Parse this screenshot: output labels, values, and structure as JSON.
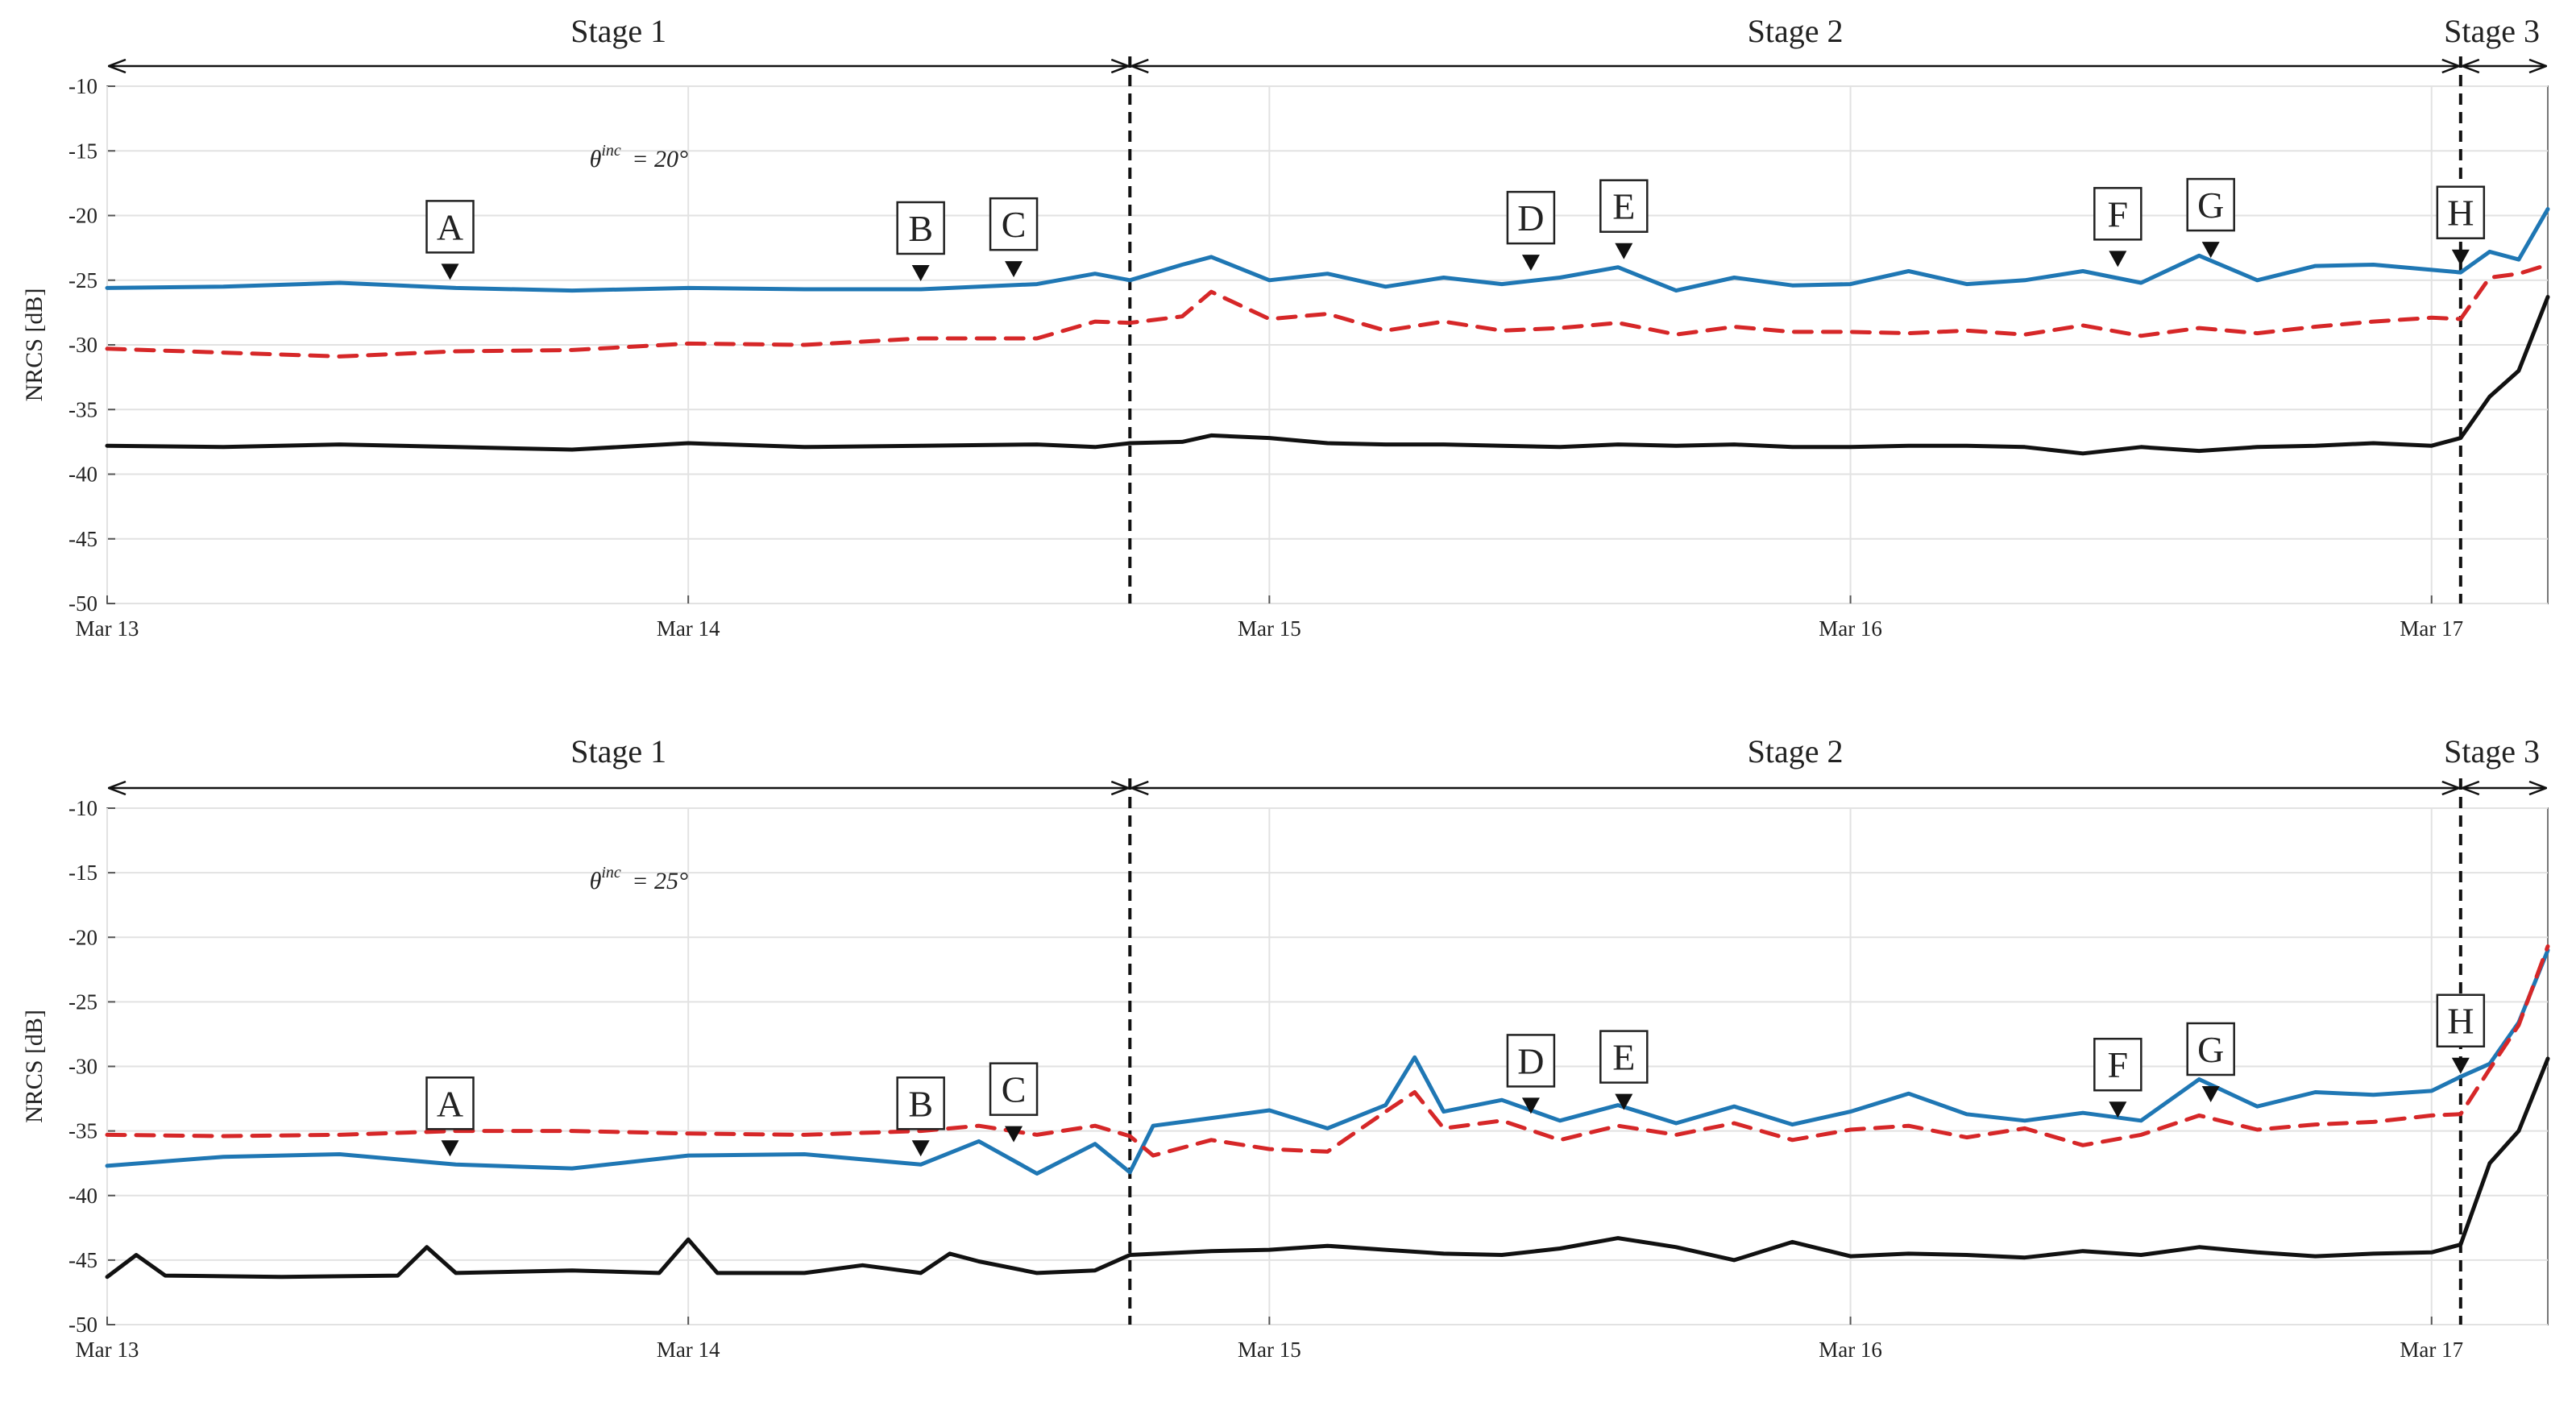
{
  "chart_data": [
    {
      "type": "line",
      "panel": "top",
      "ylabel": "NRCS [dB]",
      "ylim": [
        -50,
        -10
      ],
      "yticks": [
        -10,
        -15,
        -20,
        -25,
        -30,
        -35,
        -40,
        -45,
        -50
      ],
      "xlim": [
        0,
        4.2
      ],
      "xticks": [
        {
          "v": 0,
          "label": "Mar 13"
        },
        {
          "v": 1,
          "label": "Mar 14"
        },
        {
          "v": 2,
          "label": "Mar 15"
        },
        {
          "v": 3,
          "label": "Mar 16"
        },
        {
          "v": 4,
          "label": "Mar 17"
        }
      ],
      "grid": true,
      "annotation": {
        "theta_label": "θ",
        "theta_sup": "inc",
        "theta_value": "= 20°"
      },
      "stages": [
        {
          "label": "Stage 1",
          "from": 0,
          "to": 1.76
        },
        {
          "label": "Stage 2",
          "from": 1.76,
          "to": 4.05
        },
        {
          "label": "Stage 3",
          "from": 4.05,
          "to": 4.2
        }
      ],
      "stage_boundaries": [
        1.76,
        4.05
      ],
      "markers": [
        {
          "label": "A",
          "x": 0.59,
          "y": -25.6
        },
        {
          "label": "B",
          "x": 1.4,
          "y": -25.7
        },
        {
          "label": "C",
          "x": 1.56,
          "y": -25.4
        },
        {
          "label": "D",
          "x": 2.45,
          "y": -24.9
        },
        {
          "label": "E",
          "x": 2.61,
          "y": -24.0
        },
        {
          "label": "F",
          "x": 3.46,
          "y": -24.6
        },
        {
          "label": "G",
          "x": 3.62,
          "y": -23.9
        },
        {
          "label": "H",
          "x": 4.05,
          "y": -24.5
        }
      ],
      "series": [
        {
          "name": "blue",
          "color": "#1f77b4",
          "style": "solid",
          "x": [
            0,
            0.2,
            0.4,
            0.6,
            0.8,
            1.0,
            1.2,
            1.4,
            1.6,
            1.7,
            1.76,
            1.85,
            1.9,
            2.0,
            2.1,
            2.2,
            2.3,
            2.4,
            2.5,
            2.6,
            2.7,
            2.8,
            2.9,
            3.0,
            3.1,
            3.2,
            3.3,
            3.4,
            3.5,
            3.6,
            3.7,
            3.8,
            3.9,
            4.0,
            4.05,
            4.1,
            4.15,
            4.2
          ],
          "y": [
            -25.6,
            -25.5,
            -25.2,
            -25.6,
            -25.8,
            -25.6,
            -25.7,
            -25.7,
            -25.3,
            -24.5,
            -25.0,
            -23.8,
            -23.2,
            -25.0,
            -24.5,
            -25.5,
            -24.8,
            -25.3,
            -24.8,
            -24.0,
            -25.8,
            -24.8,
            -25.4,
            -25.3,
            -24.3,
            -25.3,
            -25.0,
            -24.3,
            -25.2,
            -23.1,
            -25.0,
            -23.9,
            -23.8,
            -24.2,
            -24.4,
            -22.8,
            -23.4,
            -19.5
          ]
        },
        {
          "name": "red",
          "color": "#d62728",
          "style": "dashed",
          "x": [
            0,
            0.2,
            0.4,
            0.6,
            0.8,
            1.0,
            1.2,
            1.4,
            1.6,
            1.7,
            1.76,
            1.85,
            1.9,
            2.0,
            2.1,
            2.2,
            2.3,
            2.4,
            2.5,
            2.6,
            2.7,
            2.8,
            2.9,
            3.0,
            3.1,
            3.2,
            3.3,
            3.4,
            3.5,
            3.6,
            3.7,
            3.8,
            3.9,
            4.0,
            4.05,
            4.1,
            4.15,
            4.2
          ],
          "y": [
            -30.3,
            -30.6,
            -30.9,
            -30.5,
            -30.4,
            -29.9,
            -30.0,
            -29.5,
            -29.5,
            -28.2,
            -28.3,
            -27.8,
            -25.9,
            -28.0,
            -27.6,
            -28.9,
            -28.2,
            -28.9,
            -28.7,
            -28.3,
            -29.2,
            -28.6,
            -29.0,
            -29.0,
            -29.1,
            -28.9,
            -29.2,
            -28.5,
            -29.3,
            -28.7,
            -29.1,
            -28.6,
            -28.2,
            -27.9,
            -28.0,
            -24.8,
            -24.5,
            -23.8
          ]
        },
        {
          "name": "black",
          "color": "#111111",
          "style": "solid",
          "x": [
            0,
            0.2,
            0.4,
            0.6,
            0.8,
            1.0,
            1.2,
            1.4,
            1.6,
            1.7,
            1.76,
            1.85,
            1.9,
            2.0,
            2.1,
            2.2,
            2.3,
            2.4,
            2.5,
            2.6,
            2.7,
            2.8,
            2.9,
            3.0,
            3.1,
            3.2,
            3.3,
            3.4,
            3.5,
            3.6,
            3.7,
            3.8,
            3.9,
            4.0,
            4.05,
            4.1,
            4.15,
            4.2
          ],
          "y": [
            -37.8,
            -37.9,
            -37.7,
            -37.9,
            -38.1,
            -37.6,
            -37.9,
            -37.8,
            -37.7,
            -37.9,
            -37.6,
            -37.5,
            -37.0,
            -37.2,
            -37.6,
            -37.7,
            -37.7,
            -37.8,
            -37.9,
            -37.7,
            -37.8,
            -37.7,
            -37.9,
            -37.9,
            -37.8,
            -37.8,
            -37.9,
            -38.4,
            -37.9,
            -38.2,
            -37.9,
            -37.8,
            -37.6,
            -37.8,
            -37.2,
            -34.0,
            -32.0,
            -26.3
          ]
        }
      ]
    },
    {
      "type": "line",
      "panel": "bottom",
      "ylabel": "NRCS [dB]",
      "ylim": [
        -50,
        -10
      ],
      "yticks": [
        -10,
        -15,
        -20,
        -25,
        -30,
        -35,
        -40,
        -45,
        -50
      ],
      "xlim": [
        0,
        4.2
      ],
      "xticks": [
        {
          "v": 0,
          "label": "Mar 13"
        },
        {
          "v": 1,
          "label": "Mar 14"
        },
        {
          "v": 2,
          "label": "Mar 15"
        },
        {
          "v": 3,
          "label": "Mar 16"
        },
        {
          "v": 4,
          "label": "Mar 17"
        }
      ],
      "grid": true,
      "annotation": {
        "theta_label": "θ",
        "theta_sup": "inc",
        "theta_value": "= 25°"
      },
      "stages": [
        {
          "label": "Stage 1",
          "from": 0,
          "to": 1.76
        },
        {
          "label": "Stage 2",
          "from": 1.76,
          "to": 4.05
        },
        {
          "label": "Stage 3",
          "from": 4.05,
          "to": 4.2
        }
      ],
      "stage_boundaries": [
        1.76,
        4.05
      ],
      "markers": [
        {
          "label": "A",
          "x": 0.59,
          "y": -37.6
        },
        {
          "label": "B",
          "x": 1.4,
          "y": -37.6
        },
        {
          "label": "C",
          "x": 1.56,
          "y": -36.5
        },
        {
          "label": "D",
          "x": 2.45,
          "y": -34.3
        },
        {
          "label": "E",
          "x": 2.61,
          "y": -34.0
        },
        {
          "label": "F",
          "x": 3.46,
          "y": -34.6
        },
        {
          "label": "G",
          "x": 3.62,
          "y": -33.4
        },
        {
          "label": "H",
          "x": 4.05,
          "y": -31.2
        }
      ],
      "series": [
        {
          "name": "blue",
          "color": "#1f77b4",
          "style": "solid",
          "x": [
            0,
            0.2,
            0.4,
            0.6,
            0.8,
            1.0,
            1.2,
            1.4,
            1.5,
            1.6,
            1.7,
            1.76,
            1.8,
            1.9,
            2.0,
            2.1,
            2.2,
            2.25,
            2.3,
            2.4,
            2.5,
            2.6,
            2.7,
            2.8,
            2.9,
            3.0,
            3.1,
            3.2,
            3.3,
            3.4,
            3.5,
            3.6,
            3.7,
            3.8,
            3.9,
            4.0,
            4.05,
            4.1,
            4.15,
            4.2
          ],
          "y": [
            -37.7,
            -37.0,
            -36.8,
            -37.6,
            -37.9,
            -36.9,
            -36.8,
            -37.6,
            -35.8,
            -38.3,
            -36.0,
            -38.2,
            -34.6,
            -34.0,
            -33.4,
            -34.8,
            -33.0,
            -29.3,
            -33.5,
            -32.6,
            -34.2,
            -33.0,
            -34.4,
            -33.1,
            -34.5,
            -33.5,
            -32.1,
            -33.7,
            -34.2,
            -33.6,
            -34.2,
            -31.0,
            -33.1,
            -32.0,
            -32.2,
            -31.9,
            -30.8,
            -29.8,
            -26.6,
            -21.0
          ]
        },
        {
          "name": "red",
          "color": "#d62728",
          "style": "dashed",
          "x": [
            0,
            0.2,
            0.4,
            0.6,
            0.8,
            1.0,
            1.2,
            1.4,
            1.5,
            1.6,
            1.7,
            1.76,
            1.8,
            1.9,
            2.0,
            2.1,
            2.2,
            2.25,
            2.3,
            2.4,
            2.5,
            2.6,
            2.7,
            2.8,
            2.9,
            3.0,
            3.1,
            3.2,
            3.3,
            3.4,
            3.5,
            3.6,
            3.7,
            3.8,
            3.9,
            4.0,
            4.05,
            4.1,
            4.15,
            4.2
          ],
          "y": [
            -35.3,
            -35.4,
            -35.3,
            -35.0,
            -35.0,
            -35.2,
            -35.3,
            -35.0,
            -34.6,
            -35.3,
            -34.6,
            -35.4,
            -36.9,
            -35.7,
            -36.4,
            -36.6,
            -33.5,
            -32.0,
            -34.8,
            -34.2,
            -35.7,
            -34.6,
            -35.3,
            -34.4,
            -35.7,
            -34.9,
            -34.6,
            -35.5,
            -34.8,
            -36.1,
            -35.3,
            -33.8,
            -34.9,
            -34.5,
            -34.3,
            -33.8,
            -33.7,
            -30.2,
            -26.8,
            -20.7
          ]
        },
        {
          "name": "black",
          "color": "#111111",
          "style": "solid",
          "x": [
            0,
            0.05,
            0.1,
            0.3,
            0.5,
            0.55,
            0.6,
            0.8,
            0.95,
            1.0,
            1.05,
            1.2,
            1.3,
            1.4,
            1.45,
            1.5,
            1.6,
            1.7,
            1.76,
            1.9,
            2.0,
            2.1,
            2.2,
            2.3,
            2.4,
            2.5,
            2.6,
            2.7,
            2.8,
            2.9,
            3.0,
            3.1,
            3.2,
            3.3,
            3.4,
            3.5,
            3.6,
            3.7,
            3.8,
            3.9,
            4.0,
            4.05,
            4.1,
            4.15,
            4.2
          ],
          "y": [
            -46.3,
            -44.6,
            -46.2,
            -46.3,
            -46.2,
            -44.0,
            -46.0,
            -45.8,
            -46.0,
            -43.4,
            -46.0,
            -46.0,
            -45.4,
            -46.0,
            -44.5,
            -45.1,
            -46.0,
            -45.8,
            -44.6,
            -44.3,
            -44.2,
            -43.9,
            -44.2,
            -44.5,
            -44.6,
            -44.1,
            -43.3,
            -44.0,
            -45.0,
            -43.6,
            -44.7,
            -44.5,
            -44.6,
            -44.8,
            -44.3,
            -44.6,
            -44.0,
            -44.4,
            -44.7,
            -44.5,
            -44.4,
            -43.8,
            -37.5,
            -35.0,
            -29.4
          ]
        }
      ]
    }
  ]
}
